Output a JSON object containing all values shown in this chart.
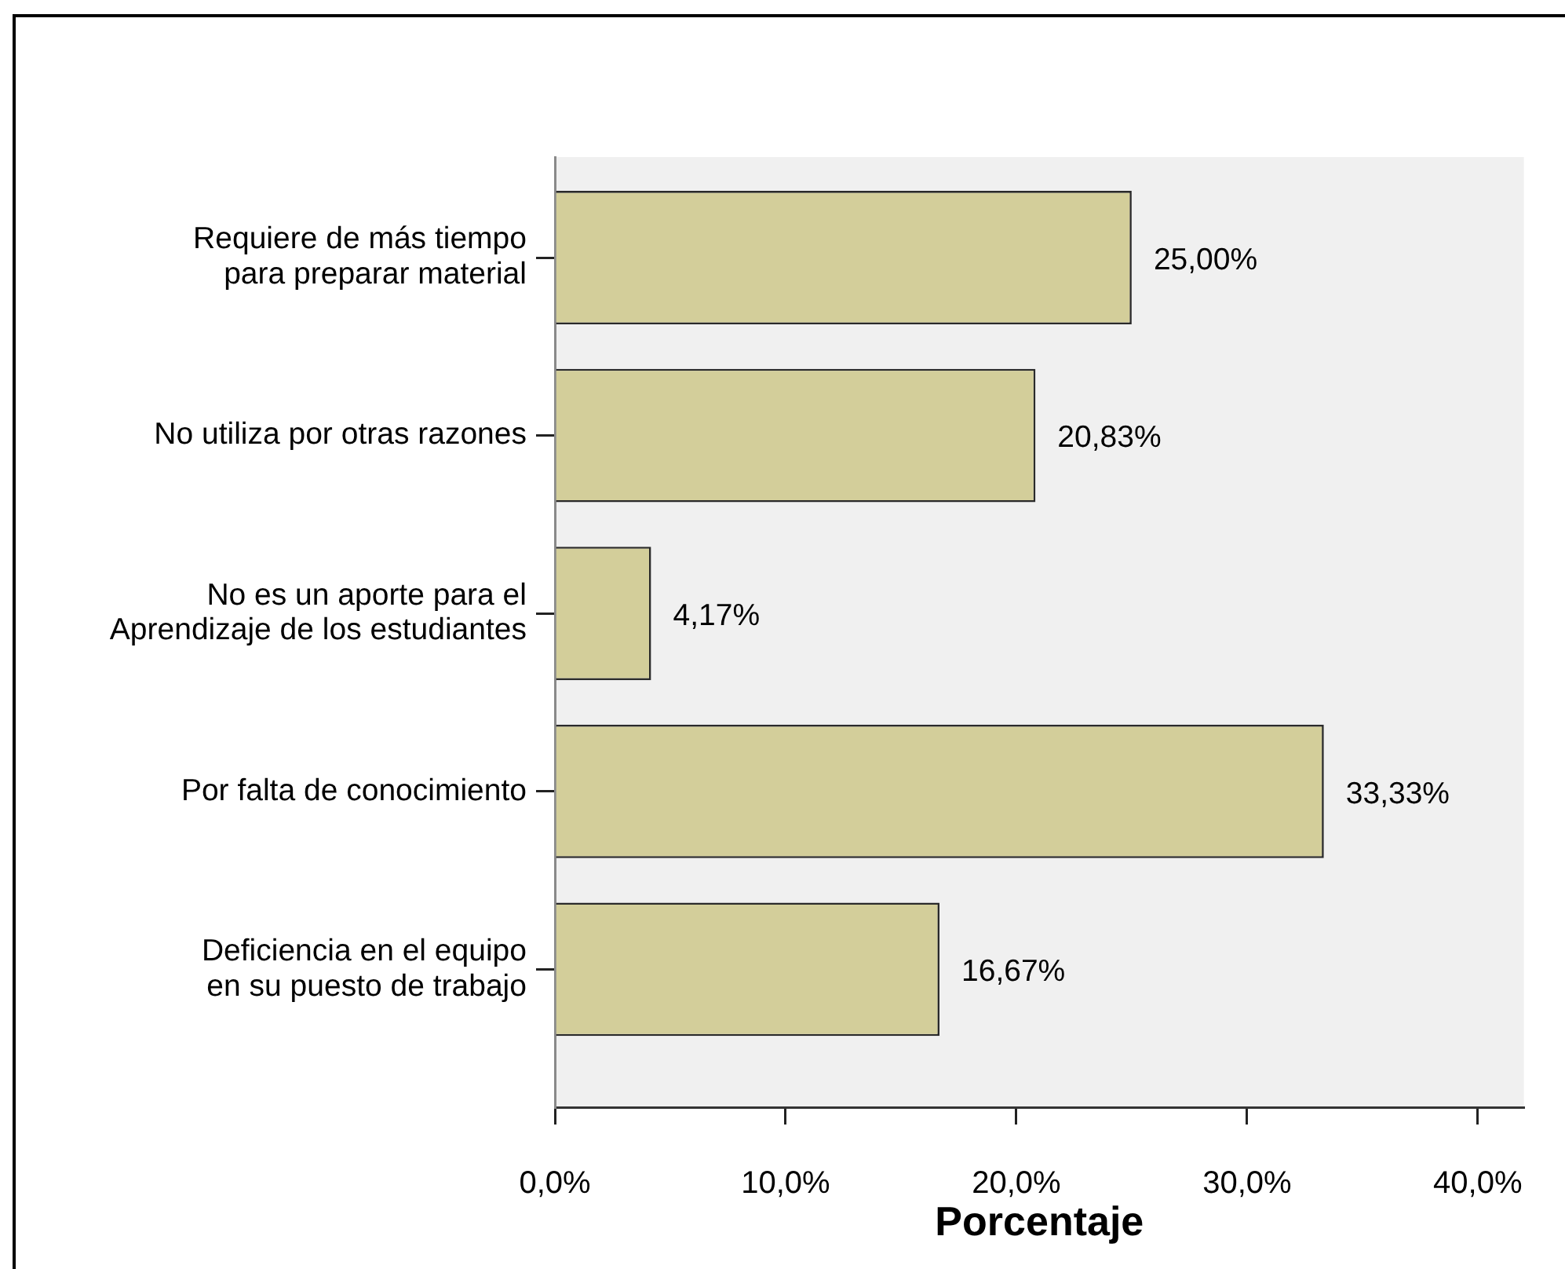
{
  "chart_data": {
    "type": "bar",
    "orientation": "horizontal",
    "xlabel": "Porcentaje",
    "categories": [
      "Requiere de más tiempo para preparar material",
      "No utiliza por otras razones",
      "No es un aporte para el Aprendizaje de los estudiantes",
      "Por falta de conocimiento",
      "Deficiencia en el equipo en su puesto de trabajo"
    ],
    "values": [
      25,
      20.83,
      4.17,
      33.33,
      16.67
    ],
    "value_labels": [
      "25,00%",
      "20,83%",
      "4,17%",
      "33,33%",
      "16,67%"
    ],
    "color": "#d3ce9a",
    "xlim": [
      0,
      42
    ],
    "xticks": [
      {
        "value": 0,
        "label": "0,0%"
      },
      {
        "value": 10,
        "label": "10,0%"
      },
      {
        "value": 20,
        "label": "20,0%"
      },
      {
        "value": 30,
        "label": "30,0%"
      },
      {
        "value": 40,
        "label": "40,0%"
      }
    ]
  }
}
